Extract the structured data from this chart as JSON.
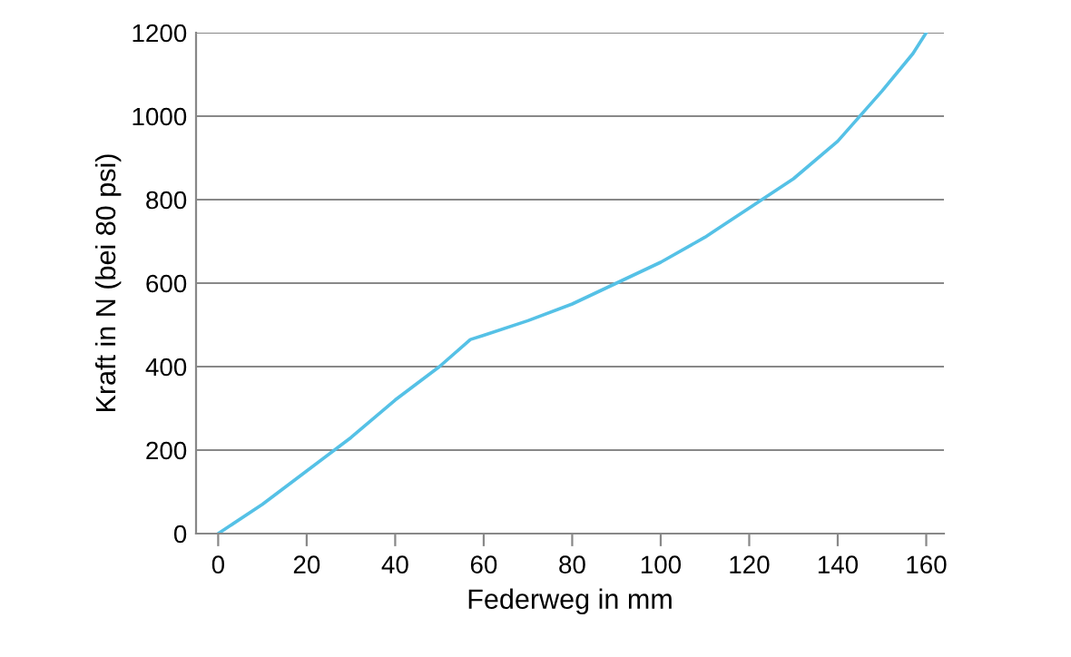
{
  "chart_data": {
    "type": "line",
    "xlabel": "Federweg in mm",
    "ylabel": "Kraft in N (bei 80 psi)",
    "x": [
      0,
      10,
      20,
      30,
      40,
      50,
      57,
      60,
      70,
      80,
      90,
      100,
      110,
      120,
      130,
      140,
      150,
      157,
      160
    ],
    "series": [
      {
        "color": "#55c1e6",
        "values": [
          0,
          70,
          150,
          230,
          320,
          400,
          465,
          475,
          510,
          550,
          600,
          650,
          710,
          780,
          850,
          940,
          1060,
          1150,
          1200
        ]
      }
    ],
    "xlim": [
      -5,
      164
    ],
    "xticks": [
      0,
      20,
      40,
      60,
      80,
      100,
      120,
      140,
      160
    ],
    "ylim": [
      0,
      1200
    ],
    "yticks": [
      0,
      200,
      400,
      600,
      800,
      1000,
      1200
    ],
    "grid": "y",
    "legend": false,
    "marker": "none",
    "line_style": "solid"
  }
}
